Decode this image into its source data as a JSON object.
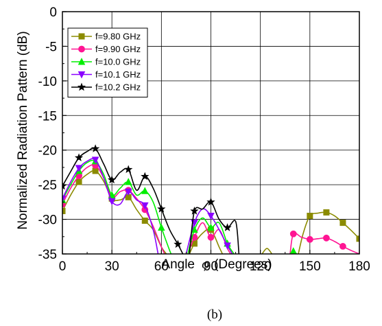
{
  "caption": "(b)",
  "chart_data": {
    "type": "line",
    "xlabel_prefix": "Angle",
    "xlabel_symbol": "φ",
    "xlabel_suffix": "(Degrees)",
    "ylabel": "Normalized Radiation Pattern (dB)",
    "xlim": [
      0,
      180
    ],
    "ylim": [
      -35,
      0
    ],
    "x_ticks": [
      0,
      30,
      60,
      90,
      120,
      150,
      180
    ],
    "y_ticks": [
      0,
      -5,
      -10,
      -15,
      -20,
      -25,
      -30,
      -35
    ],
    "grid": true,
    "legend_position": "top-left",
    "series": [
      {
        "name": "f=9.80 GHz",
        "color": "#8b8b00",
        "marker": "square",
        "segments": [
          [
            [
              0,
              -28.8
            ],
            [
              5,
              -26.5
            ],
            [
              10,
              -24.6
            ],
            [
              15,
              -23.5
            ],
            [
              20,
              -23.0
            ],
            [
              25,
              -24.5
            ],
            [
              30,
              -27.0
            ],
            [
              35,
              -27.2
            ],
            [
              40,
              -26.8
            ],
            [
              45,
              -28.6
            ],
            [
              50,
              -30.2
            ],
            [
              55,
              -31.5
            ],
            [
              60,
              -34.0
            ],
            [
              63,
              -35.0
            ]
          ],
          [
            [
              77,
              -35.0
            ],
            [
              80,
              -33.5
            ],
            [
              85,
              -32.0
            ],
            [
              90,
              -31.5
            ],
            [
              95,
              -34.0
            ],
            [
              97,
              -35.0
            ]
          ],
          [
            [
              121,
              -35.0
            ],
            [
              124,
              -34.2
            ],
            [
              127,
              -35.0
            ]
          ],
          [
            [
              143,
              -35.0
            ],
            [
              146,
              -32.0
            ],
            [
              150,
              -29.5
            ],
            [
              155,
              -29.1
            ],
            [
              160,
              -29.0
            ],
            [
              165,
              -29.5
            ],
            [
              170,
              -30.5
            ],
            [
              175,
              -31.6
            ],
            [
              180,
              -32.8
            ]
          ]
        ],
        "markers": [
          [
            0,
            -28.8
          ],
          [
            10,
            -24.6
          ],
          [
            20,
            -23.0
          ],
          [
            30,
            -27.0
          ],
          [
            40,
            -26.8
          ],
          [
            50,
            -30.2
          ],
          [
            80,
            -33.5
          ],
          [
            90,
            -31.5
          ],
          [
            150,
            -29.5
          ],
          [
            160,
            -29.0
          ],
          [
            170,
            -30.5
          ],
          [
            180,
            -32.8
          ]
        ]
      },
      {
        "name": "f=9.90 GHz",
        "color": "#ff1493",
        "marker": "circle",
        "segments": [
          [
            [
              0,
              -27.8
            ],
            [
              5,
              -25.5
            ],
            [
              10,
              -23.7
            ],
            [
              15,
              -22.5
            ],
            [
              20,
              -22.2
            ],
            [
              25,
              -24.0
            ],
            [
              30,
              -26.8
            ],
            [
              35,
              -26.0
            ],
            [
              40,
              -25.8
            ],
            [
              45,
              -27.0
            ],
            [
              50,
              -28.6
            ],
            [
              55,
              -31.0
            ],
            [
              60,
              -34.0
            ],
            [
              62,
              -35.0
            ]
          ],
          [
            [
              76,
              -35.0
            ],
            [
              80,
              -32.6
            ],
            [
              85,
              -30.5
            ],
            [
              90,
              -32.6
            ],
            [
              95,
              -31.5
            ],
            [
              100,
              -34.2
            ],
            [
              102,
              -35.0
            ]
          ],
          [
            [
              138,
              -35.0
            ],
            [
              140,
              -32.1
            ],
            [
              145,
              -32.6
            ],
            [
              150,
              -32.9
            ],
            [
              155,
              -32.8
            ],
            [
              160,
              -32.7
            ],
            [
              165,
              -33.2
            ],
            [
              170,
              -33.9
            ],
            [
              175,
              -34.5
            ],
            [
              180,
              -35.0
            ]
          ]
        ],
        "markers": [
          [
            0,
            -27.8
          ],
          [
            10,
            -23.7
          ],
          [
            20,
            -22.2
          ],
          [
            30,
            -26.8
          ],
          [
            40,
            -25.8
          ],
          [
            50,
            -28.6
          ],
          [
            80,
            -32.6
          ],
          [
            90,
            -32.6
          ],
          [
            140,
            -32.1
          ],
          [
            150,
            -32.9
          ],
          [
            160,
            -32.7
          ],
          [
            170,
            -33.9
          ]
        ]
      },
      {
        "name": "f=10.0 GHz",
        "color": "#00ee00",
        "marker": "triangle",
        "segments": [
          [
            [
              0,
              -27.2
            ],
            [
              5,
              -25.0
            ],
            [
              10,
              -23.0
            ],
            [
              15,
              -21.8
            ],
            [
              20,
              -21.6
            ],
            [
              25,
              -23.5
            ],
            [
              30,
              -26.5
            ],
            [
              35,
              -25.5
            ],
            [
              40,
              -24.6
            ],
            [
              45,
              -26.5
            ],
            [
              50,
              -25.9
            ],
            [
              55,
              -27.5
            ],
            [
              60,
              -31.2
            ],
            [
              65,
              -34.5
            ],
            [
              66,
              -35.0
            ]
          ],
          [
            [
              76,
              -35.0
            ],
            [
              80,
              -31.5
            ],
            [
              85,
              -29.8
            ],
            [
              90,
              -31.2
            ],
            [
              95,
              -30.5
            ],
            [
              100,
              -33.5
            ],
            [
              104,
              -35.0
            ]
          ],
          [
            [
              138,
              -35.0
            ],
            [
              140,
              -34.6
            ],
            [
              142,
              -35.0
            ]
          ]
        ],
        "markers": [
          [
            0,
            -27.2
          ],
          [
            10,
            -23.0
          ],
          [
            20,
            -21.6
          ],
          [
            30,
            -26.5
          ],
          [
            40,
            -24.6
          ],
          [
            50,
            -25.9
          ],
          [
            60,
            -31.2
          ],
          [
            80,
            -31.5
          ],
          [
            90,
            -31.2
          ],
          [
            100,
            -33.5
          ],
          [
            140,
            -34.6
          ]
        ]
      },
      {
        "name": "f=10.1 GHz",
        "color": "#8a00ff",
        "marker": "triangle-down",
        "segments": [
          [
            [
              0,
              -27.0
            ],
            [
              5,
              -24.6
            ],
            [
              10,
              -22.6
            ],
            [
              15,
              -21.6
            ],
            [
              20,
              -21.4
            ],
            [
              25,
              -24.0
            ],
            [
              30,
              -27.4
            ],
            [
              35,
              -27.8
            ],
            [
              40,
              -26.0
            ],
            [
              45,
              -27.2
            ],
            [
              50,
              -28.0
            ],
            [
              55,
              -31.5
            ],
            [
              58,
              -35.0
            ]
          ],
          [
            [
              75,
              -35.0
            ],
            [
              80,
              -30.5
            ],
            [
              85,
              -28.5
            ],
            [
              90,
              -29.5
            ],
            [
              95,
              -31.5
            ],
            [
              100,
              -33.8
            ],
            [
              103,
              -35.0
            ]
          ]
        ],
        "markers": [
          [
            0,
            -27.0
          ],
          [
            10,
            -22.6
          ],
          [
            20,
            -21.4
          ],
          [
            30,
            -27.4
          ],
          [
            40,
            -26.0
          ],
          [
            50,
            -28.0
          ],
          [
            80,
            -30.5
          ],
          [
            90,
            -29.5
          ],
          [
            100,
            -33.8
          ]
        ]
      },
      {
        "name": "f=10.2 GHz",
        "color": "#000000",
        "marker": "star",
        "segments": [
          [
            [
              0,
              -25.2
            ],
            [
              5,
              -23.1
            ],
            [
              10,
              -21.1
            ],
            [
              15,
              -20.2
            ],
            [
              20,
              -19.8
            ],
            [
              25,
              -22.0
            ],
            [
              30,
              -24.3
            ],
            [
              35,
              -23.2
            ],
            [
              40,
              -22.8
            ],
            [
              45,
              -25.8
            ],
            [
              50,
              -23.8
            ],
            [
              55,
              -25.5
            ],
            [
              60,
              -28.5
            ],
            [
              65,
              -31.5
            ],
            [
              70,
              -33.6
            ],
            [
              73,
              -35.0
            ]
          ],
          [
            [
              77,
              -35.0
            ],
            [
              80,
              -28.8
            ],
            [
              85,
              -28.5
            ],
            [
              90,
              -27.5
            ],
            [
              95,
              -30.0
            ],
            [
              100,
              -31.2
            ],
            [
              105,
              -30.3
            ],
            [
              107,
              -35.0
            ]
          ]
        ],
        "markers": [
          [
            0,
            -25.2
          ],
          [
            10,
            -21.1
          ],
          [
            20,
            -19.8
          ],
          [
            30,
            -24.3
          ],
          [
            40,
            -22.8
          ],
          [
            50,
            -23.8
          ],
          [
            60,
            -28.5
          ],
          [
            70,
            -33.6
          ],
          [
            80,
            -28.8
          ],
          [
            90,
            -27.5
          ],
          [
            100,
            -31.2
          ]
        ]
      }
    ]
  }
}
